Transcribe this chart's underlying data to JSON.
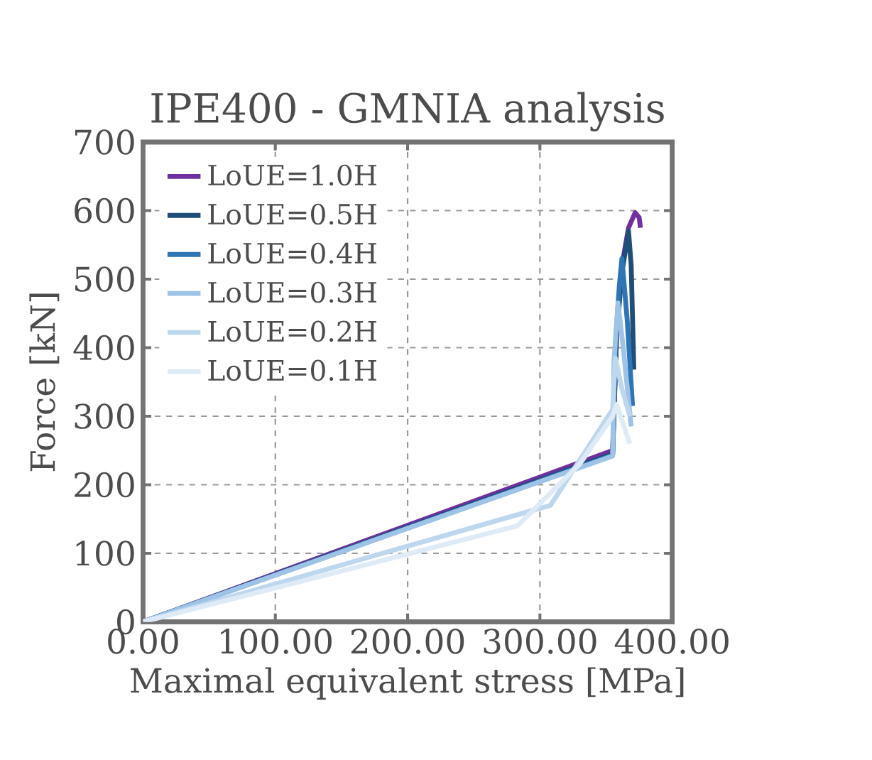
{
  "chart_data": {
    "type": "line",
    "title": "IPE400 - GMNIA analysis",
    "xlabel": "Maximal equivalent stress [MPa]",
    "ylabel": "Force [kN]",
    "xlim": [
      0,
      400
    ],
    "ylim": [
      0,
      700
    ],
    "xticks": [
      {
        "value": 0,
        "label": "0.00"
      },
      {
        "value": 100,
        "label": "100.00"
      },
      {
        "value": 200,
        "label": "200.00"
      },
      {
        "value": 300,
        "label": "300.00"
      },
      {
        "value": 400,
        "label": "400.00"
      }
    ],
    "yticks": [
      0,
      100,
      200,
      300,
      400,
      500,
      600,
      700
    ],
    "grid": true,
    "legend": "top left",
    "marker": "none",
    "line_style": "solid",
    "series": [
      {
        "name": "LoUE=1.0H",
        "color": "#7030a0",
        "x": [
          0,
          355,
          358,
          362,
          367,
          372,
          375,
          376
        ],
        "values": [
          0,
          250,
          420,
          520,
          575,
          597,
          590,
          575
        ]
      },
      {
        "name": "LoUE=0.5H",
        "color": "#1f4e79",
        "x": [
          0,
          355,
          358,
          362,
          367,
          369,
          371
        ],
        "values": [
          0,
          245,
          420,
          510,
          570,
          520,
          368
        ]
      },
      {
        "name": "LoUE=0.4H",
        "color": "#2e75b6",
        "x": [
          0,
          355,
          357,
          360,
          362,
          366,
          370
        ],
        "values": [
          0,
          243,
          400,
          490,
          530,
          440,
          315
        ]
      },
      {
        "name": "LoUE=0.3H",
        "color": "#9dc3e6",
        "x": [
          0,
          355,
          356,
          359,
          363,
          369
        ],
        "values": [
          0,
          242,
          380,
          465,
          400,
          285
        ]
      },
      {
        "name": "LoUE=0.2H",
        "color": "#bdd7ee",
        "x": [
          0,
          308,
          355,
          357,
          362,
          368
        ],
        "values": [
          0,
          170,
          310,
          385,
          340,
          300
        ]
      },
      {
        "name": "LoUE=0.1H",
        "color": "#deebf7",
        "x": [
          0,
          283,
          330,
          355,
          358,
          368
        ],
        "values": [
          0,
          140,
          230,
          300,
          317,
          260
        ]
      }
    ]
  }
}
